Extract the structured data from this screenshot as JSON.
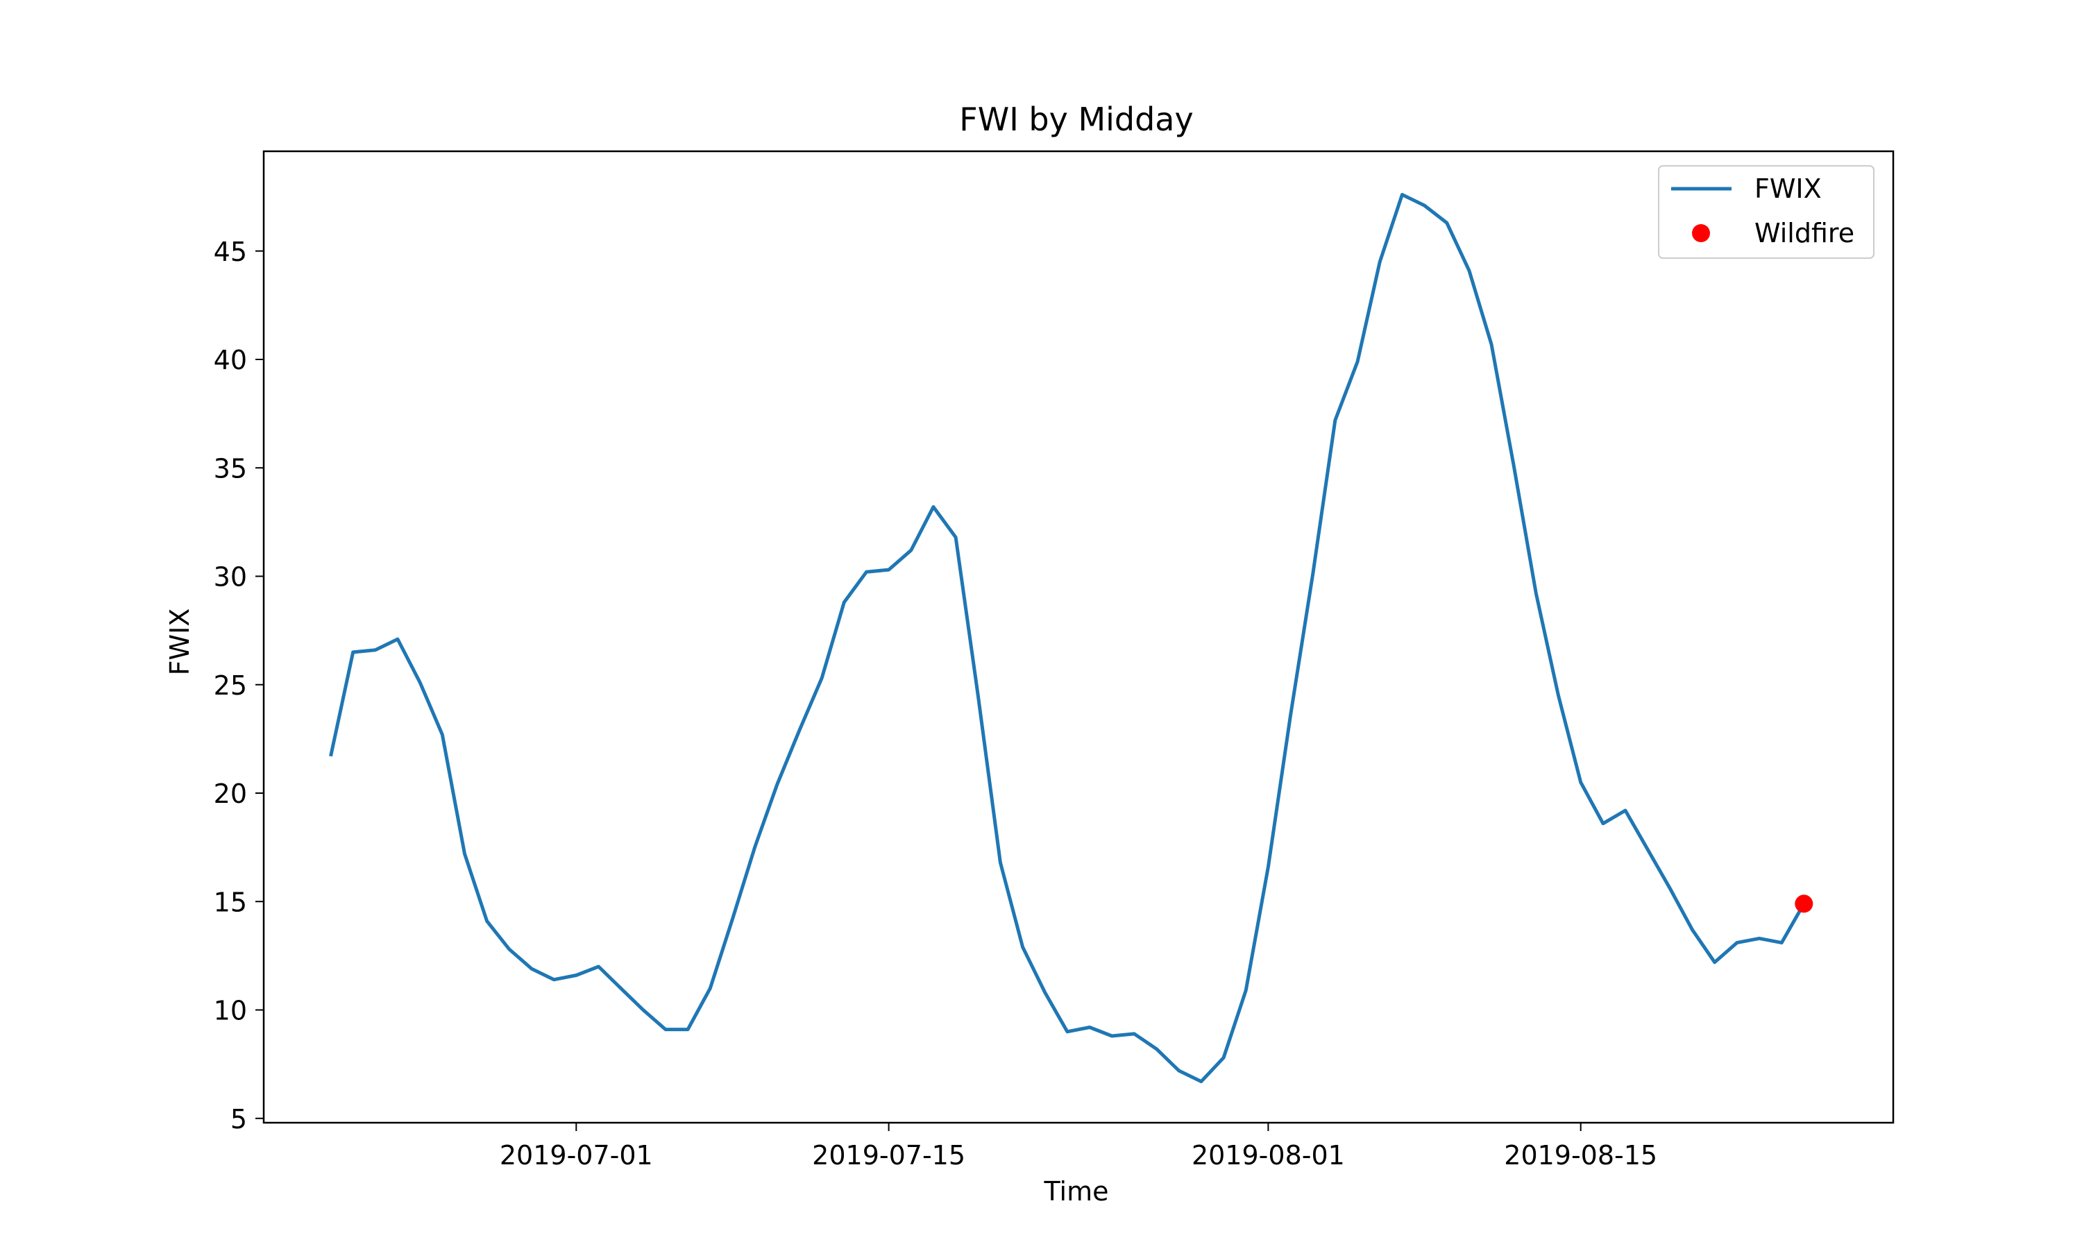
{
  "chart_data": {
    "type": "line",
    "title": "FWI by Midday",
    "xlabel": "Time",
    "ylabel": "FWIX",
    "x_axis_type": "date",
    "xlim": [
      "2019-06-17",
      "2019-08-29"
    ],
    "ylim": [
      4.8,
      49.6
    ],
    "x_ticks": [
      "2019-07-01",
      "2019-07-15",
      "2019-08-01",
      "2019-08-15"
    ],
    "y_ticks": [
      5,
      10,
      15,
      20,
      25,
      30,
      35,
      40,
      45
    ],
    "grid": false,
    "legend_position": "top-right",
    "series": [
      {
        "name": "FWIX",
        "kind": "line",
        "color": "#1f77b4",
        "points": [
          [
            "2019-06-20",
            21.7
          ],
          [
            "2019-06-21",
            26.5
          ],
          [
            "2019-06-22",
            26.6
          ],
          [
            "2019-06-23",
            27.1
          ],
          [
            "2019-06-24",
            25.1
          ],
          [
            "2019-06-25",
            22.7
          ],
          [
            "2019-06-26",
            17.2
          ],
          [
            "2019-06-27",
            14.1
          ],
          [
            "2019-06-28",
            12.8
          ],
          [
            "2019-06-29",
            11.9
          ],
          [
            "2019-06-30",
            11.4
          ],
          [
            "2019-07-01",
            11.6
          ],
          [
            "2019-07-02",
            12.0
          ],
          [
            "2019-07-03",
            11.0
          ],
          [
            "2019-07-04",
            10.0
          ],
          [
            "2019-07-05",
            9.1
          ],
          [
            "2019-07-06",
            9.1
          ],
          [
            "2019-07-07",
            11.0
          ],
          [
            "2019-07-08",
            14.2
          ],
          [
            "2019-07-09",
            17.5
          ],
          [
            "2019-07-10",
            20.4
          ],
          [
            "2019-07-11",
            22.9
          ],
          [
            "2019-07-12",
            25.3
          ],
          [
            "2019-07-13",
            28.8
          ],
          [
            "2019-07-14",
            30.2
          ],
          [
            "2019-07-15",
            30.3
          ],
          [
            "2019-07-16",
            31.2
          ],
          [
            "2019-07-17",
            33.2
          ],
          [
            "2019-07-18",
            31.8
          ],
          [
            "2019-07-19",
            24.5
          ],
          [
            "2019-07-20",
            16.8
          ],
          [
            "2019-07-21",
            12.9
          ],
          [
            "2019-07-22",
            10.8
          ],
          [
            "2019-07-23",
            9.0
          ],
          [
            "2019-07-24",
            9.2
          ],
          [
            "2019-07-25",
            8.8
          ],
          [
            "2019-07-26",
            8.9
          ],
          [
            "2019-07-27",
            8.2
          ],
          [
            "2019-07-28",
            7.2
          ],
          [
            "2019-07-29",
            6.7
          ],
          [
            "2019-07-30",
            7.8
          ],
          [
            "2019-07-31",
            10.9
          ],
          [
            "2019-08-01",
            16.6
          ],
          [
            "2019-08-02",
            23.6
          ],
          [
            "2019-08-03",
            30.1
          ],
          [
            "2019-08-04",
            37.2
          ],
          [
            "2019-08-05",
            39.9
          ],
          [
            "2019-08-06",
            44.5
          ],
          [
            "2019-08-07",
            47.6
          ],
          [
            "2019-08-08",
            47.1
          ],
          [
            "2019-08-09",
            46.3
          ],
          [
            "2019-08-10",
            44.1
          ],
          [
            "2019-08-11",
            40.7
          ],
          [
            "2019-08-12",
            35.1
          ],
          [
            "2019-08-13",
            29.2
          ],
          [
            "2019-08-14",
            24.5
          ],
          [
            "2019-08-15",
            20.5
          ],
          [
            "2019-08-16",
            18.6
          ],
          [
            "2019-08-17",
            19.2
          ],
          [
            "2019-08-18",
            17.4
          ],
          [
            "2019-08-19",
            15.6
          ],
          [
            "2019-08-20",
            13.7
          ],
          [
            "2019-08-21",
            12.2
          ],
          [
            "2019-08-22",
            13.1
          ],
          [
            "2019-08-23",
            13.3
          ],
          [
            "2019-08-24",
            13.1
          ],
          [
            "2019-08-25",
            14.9
          ]
        ]
      },
      {
        "name": "Wildfire",
        "kind": "scatter",
        "color": "#ff0000",
        "points": [
          [
            "2019-08-25",
            14.9
          ]
        ]
      }
    ]
  }
}
